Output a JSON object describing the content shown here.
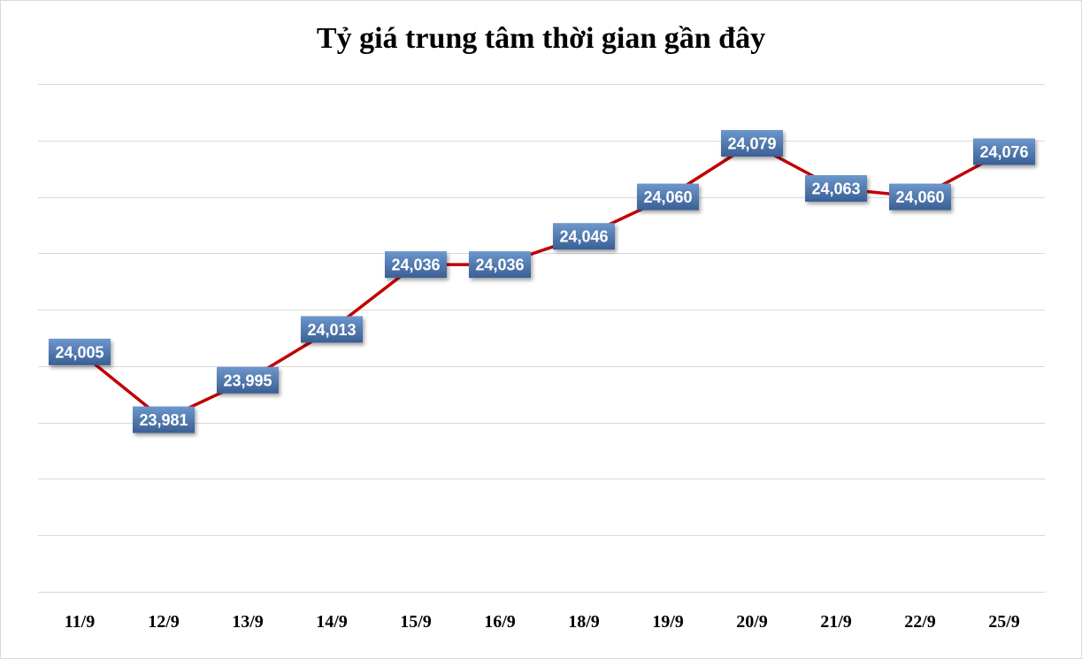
{
  "chart_data": {
    "type": "line",
    "title": "Tỷ giá trung tâm thời gian gần đây",
    "categories": [
      "11/9",
      "12/9",
      "13/9",
      "14/9",
      "15/9",
      "16/9",
      "18/9",
      "19/9",
      "20/9",
      "21/9",
      "22/9",
      "25/9"
    ],
    "series": [
      {
        "values": [
          24005,
          23981,
          23995,
          24013,
          24036,
          24036,
          24046,
          24060,
          24079,
          24063,
          24060,
          24076
        ],
        "labels": [
          "24,005",
          "23,981",
          "23,995",
          "24,013",
          "24,036",
          "24,036",
          "24,046",
          "24,060",
          "24,079",
          "24,063",
          "24,060",
          "24,076"
        ]
      }
    ],
    "ylim": [
      23920,
      24100
    ],
    "grid": true,
    "legend": "none",
    "colors": {
      "line": "#c00000",
      "label_box_dark": "#3a5f95",
      "label_box_light": "#6d97cc",
      "grid": "#d9d9d9"
    }
  }
}
